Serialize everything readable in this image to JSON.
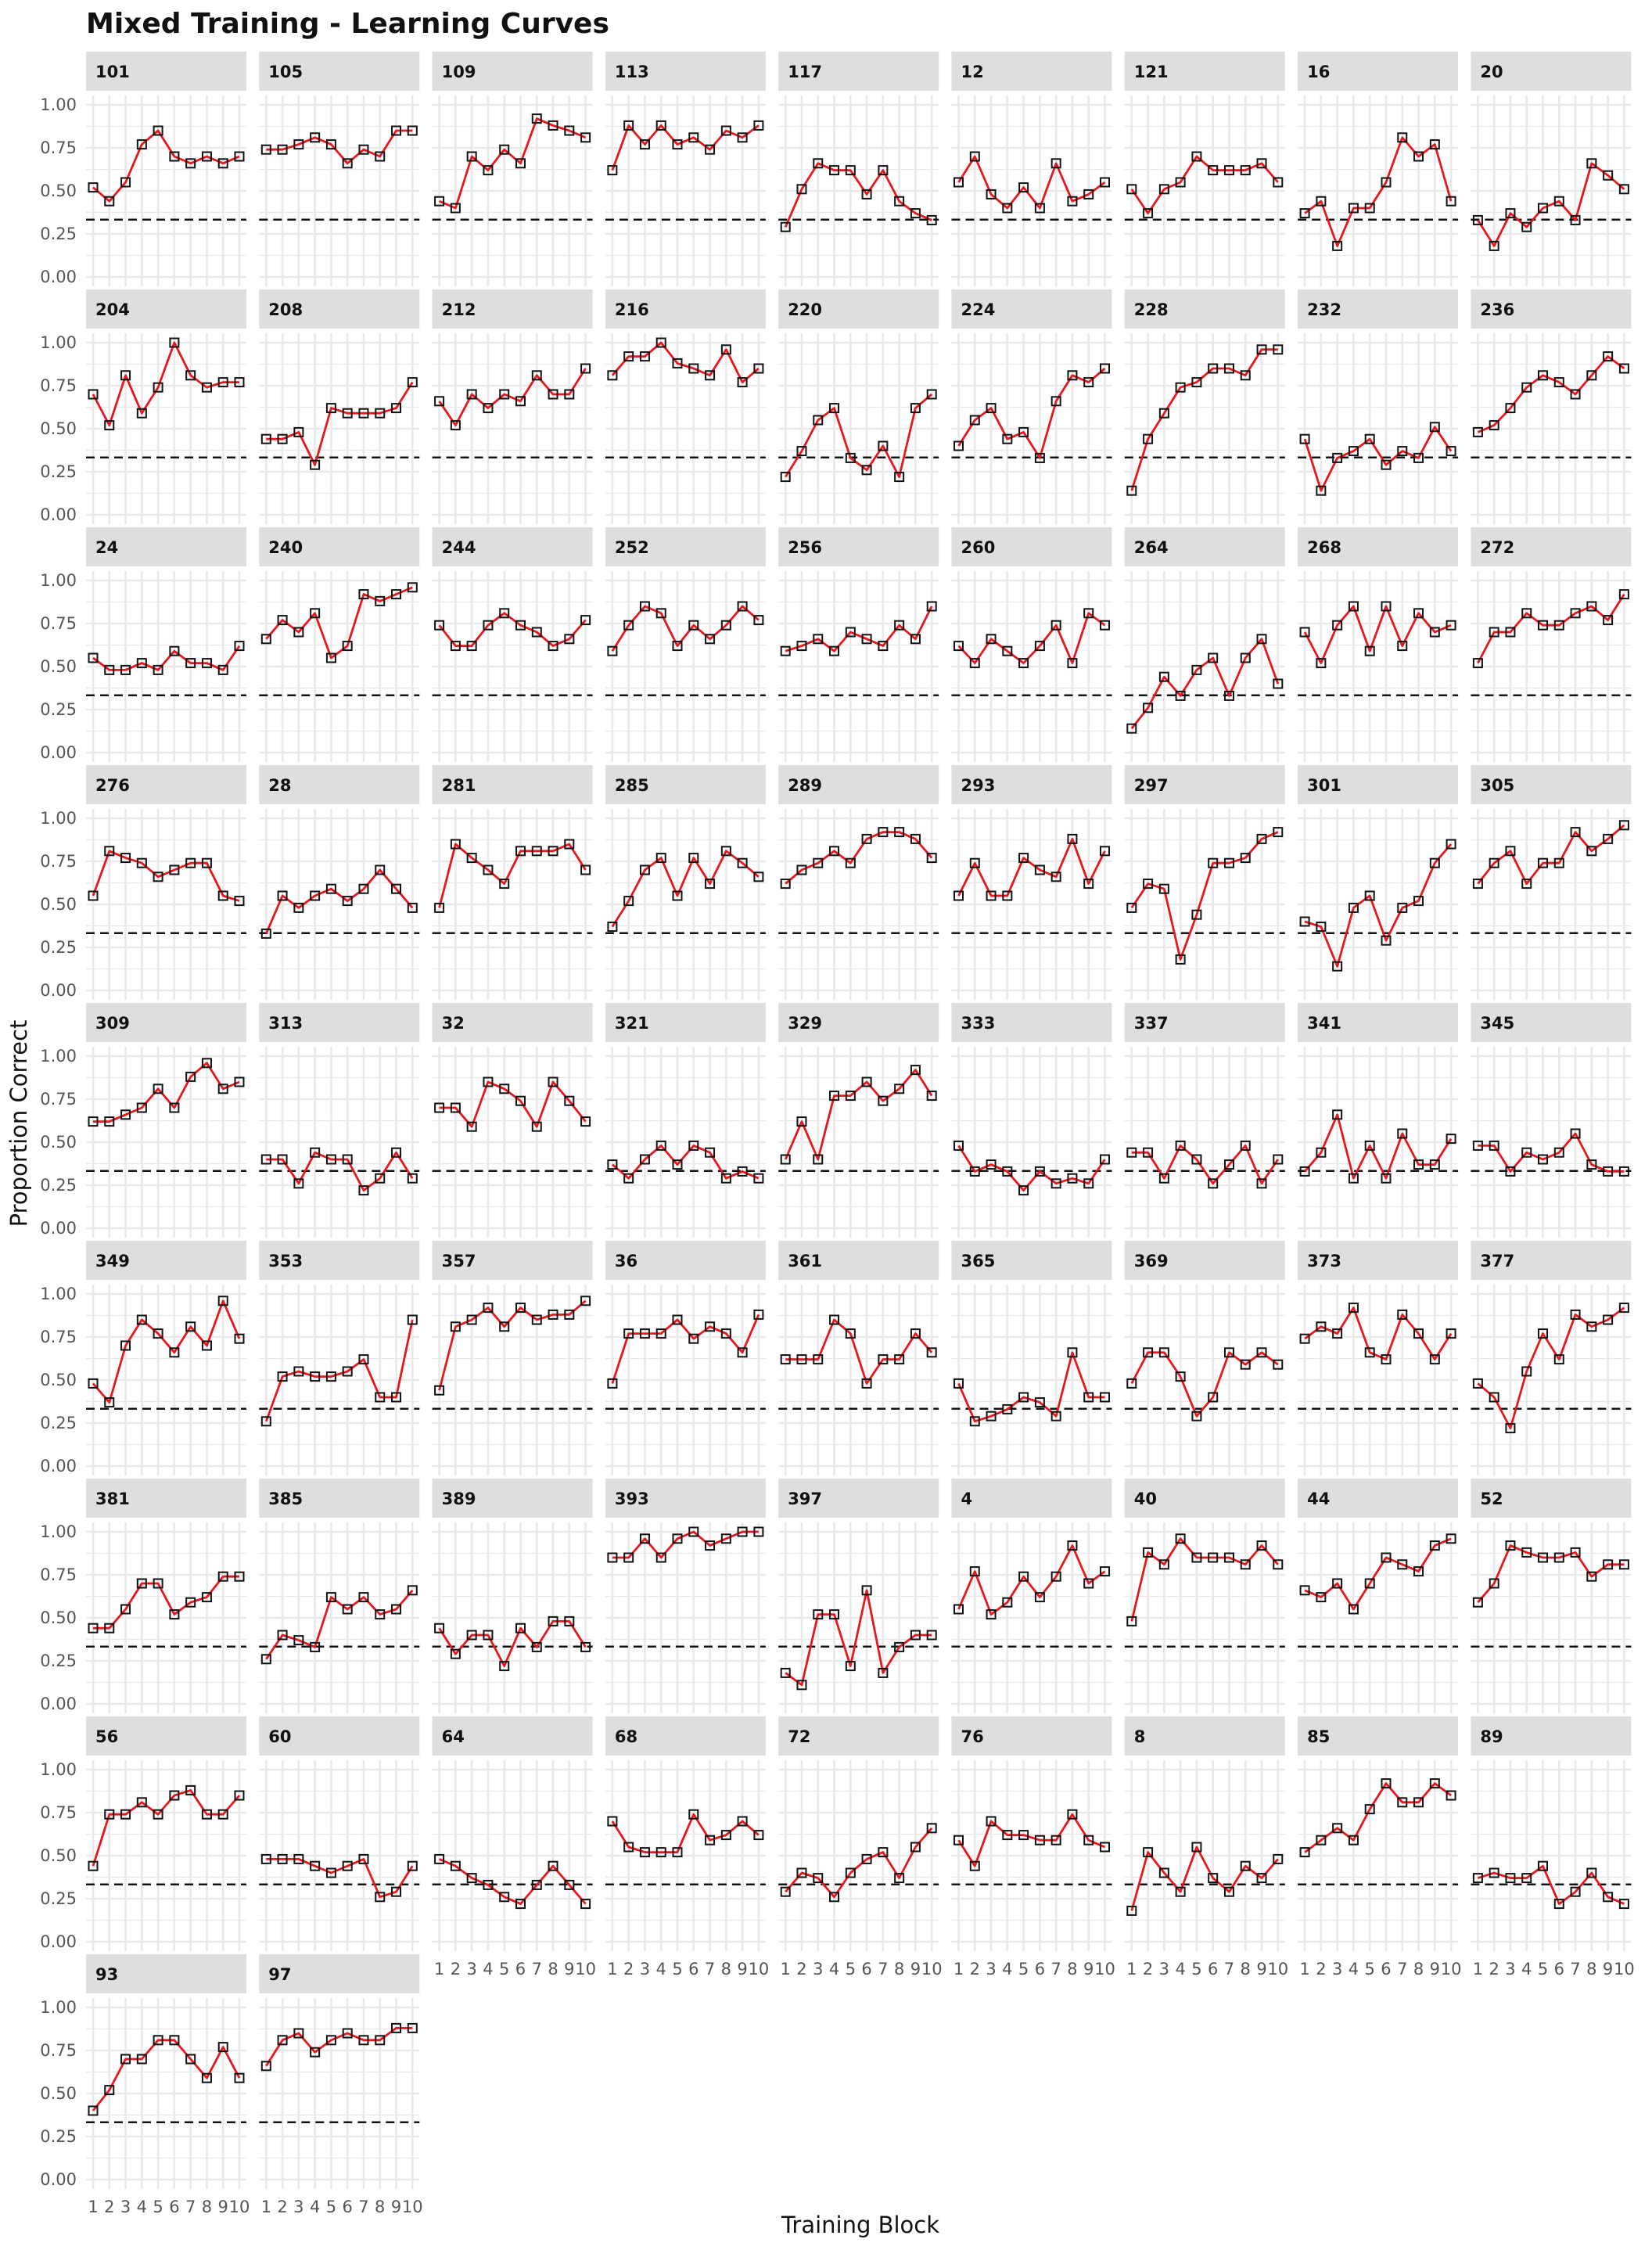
{
  "chart_data": {
    "type": "line",
    "title": "Mixed Training - Learning Curves",
    "xlabel": "Training Block",
    "ylabel": "Proportion Correct",
    "x": [
      1,
      2,
      3,
      4,
      5,
      6,
      7,
      8,
      9,
      10
    ],
    "x_tick_labels": [
      "1",
      "2",
      "3",
      "4",
      "5",
      "6",
      "7",
      "8",
      "9",
      "10"
    ],
    "ylim": [
      0,
      1
    ],
    "y_ticks": [
      0,
      0.25,
      0.5,
      0.75,
      1
    ],
    "y_tick_labels": [
      "0.00",
      "0.25",
      "0.50",
      "0.75",
      "1.00"
    ],
    "chance_line": 0.333,
    "grid": true,
    "colors": {
      "line": "#e8161d",
      "marker_edge": "#111111",
      "strip": "#dedede",
      "grid": "#e9e9e9",
      "reference_line": "#111111",
      "text": "#111111",
      "tick_text": "#555555"
    },
    "panels": [
      {
        "id": "101",
        "values": [
          0.52,
          0.44,
          0.55,
          0.77,
          0.85,
          0.7,
          0.66,
          0.7,
          0.66,
          0.7
        ]
      },
      {
        "id": "105",
        "values": [
          0.74,
          0.74,
          0.77,
          0.81,
          0.77,
          0.66,
          0.74,
          0.7,
          0.85,
          0.85
        ]
      },
      {
        "id": "109",
        "values": [
          0.44,
          0.4,
          0.7,
          0.62,
          0.74,
          0.66,
          0.92,
          0.88,
          0.85,
          0.81
        ]
      },
      {
        "id": "113",
        "values": [
          0.62,
          0.88,
          0.77,
          0.88,
          0.77,
          0.81,
          0.74,
          0.85,
          0.81,
          0.88
        ]
      },
      {
        "id": "117",
        "values": [
          0.29,
          0.51,
          0.66,
          0.62,
          0.62,
          0.48,
          0.62,
          0.44,
          0.37,
          0.33
        ]
      },
      {
        "id": "12",
        "values": [
          0.55,
          0.7,
          0.48,
          0.4,
          0.52,
          0.4,
          0.66,
          0.44,
          0.48,
          0.55
        ]
      },
      {
        "id": "121",
        "values": [
          0.51,
          0.37,
          0.51,
          0.55,
          0.7,
          0.62,
          0.62,
          0.62,
          0.66,
          0.55
        ]
      },
      {
        "id": "16",
        "values": [
          0.37,
          0.44,
          0.18,
          0.4,
          0.4,
          0.55,
          0.81,
          0.7,
          0.77,
          0.44
        ]
      },
      {
        "id": "20",
        "values": [
          0.33,
          0.18,
          0.37,
          0.29,
          0.4,
          0.44,
          0.33,
          0.66,
          0.59,
          0.51
        ]
      },
      {
        "id": "204",
        "values": [
          0.7,
          0.52,
          0.81,
          0.59,
          0.74,
          1.0,
          0.81,
          0.74,
          0.77,
          0.77
        ]
      },
      {
        "id": "208",
        "values": [
          0.44,
          0.44,
          0.48,
          0.29,
          0.62,
          0.59,
          0.59,
          0.59,
          0.62,
          0.77
        ]
      },
      {
        "id": "212",
        "values": [
          0.66,
          0.52,
          0.7,
          0.62,
          0.7,
          0.66,
          0.81,
          0.7,
          0.7,
          0.85
        ]
      },
      {
        "id": "216",
        "values": [
          0.81,
          0.92,
          0.92,
          1.0,
          0.88,
          0.85,
          0.81,
          0.96,
          0.77,
          0.85
        ]
      },
      {
        "id": "220",
        "values": [
          0.22,
          0.37,
          0.55,
          0.62,
          0.33,
          0.26,
          0.4,
          0.22,
          0.62,
          0.7
        ]
      },
      {
        "id": "224",
        "values": [
          0.4,
          0.55,
          0.62,
          0.44,
          0.48,
          0.33,
          0.66,
          0.81,
          0.77,
          0.85
        ]
      },
      {
        "id": "228",
        "values": [
          0.14,
          0.44,
          0.59,
          0.74,
          0.77,
          0.85,
          0.85,
          0.81,
          0.96,
          0.96
        ]
      },
      {
        "id": "232",
        "values": [
          0.44,
          0.14,
          0.33,
          0.37,
          0.44,
          0.29,
          0.37,
          0.33,
          0.51,
          0.37
        ]
      },
      {
        "id": "236",
        "values": [
          0.48,
          0.52,
          0.62,
          0.74,
          0.81,
          0.77,
          0.7,
          0.81,
          0.92,
          0.85
        ]
      },
      {
        "id": "24",
        "values": [
          0.55,
          0.48,
          0.48,
          0.52,
          0.48,
          0.59,
          0.52,
          0.52,
          0.48,
          0.62
        ]
      },
      {
        "id": "240",
        "values": [
          0.66,
          0.77,
          0.7,
          0.81,
          0.55,
          0.62,
          0.92,
          0.88,
          0.92,
          0.96
        ]
      },
      {
        "id": "244",
        "values": [
          0.74,
          0.62,
          0.62,
          0.74,
          0.81,
          0.74,
          0.7,
          0.62,
          0.66,
          0.77
        ]
      },
      {
        "id": "252",
        "values": [
          0.59,
          0.74,
          0.85,
          0.81,
          0.62,
          0.74,
          0.66,
          0.74,
          0.85,
          0.77
        ]
      },
      {
        "id": "256",
        "values": [
          0.59,
          0.62,
          0.66,
          0.59,
          0.7,
          0.66,
          0.62,
          0.74,
          0.66,
          0.85
        ]
      },
      {
        "id": "260",
        "values": [
          0.62,
          0.52,
          0.66,
          0.59,
          0.52,
          0.62,
          0.74,
          0.52,
          0.81,
          0.74
        ]
      },
      {
        "id": "264",
        "values": [
          0.14,
          0.26,
          0.44,
          0.33,
          0.48,
          0.55,
          0.33,
          0.55,
          0.66,
          0.4
        ]
      },
      {
        "id": "268",
        "values": [
          0.7,
          0.52,
          0.74,
          0.85,
          0.59,
          0.85,
          0.62,
          0.81,
          0.7,
          0.74
        ]
      },
      {
        "id": "272",
        "values": [
          0.52,
          0.7,
          0.7,
          0.81,
          0.74,
          0.74,
          0.81,
          0.85,
          0.77,
          0.92
        ]
      },
      {
        "id": "276",
        "values": [
          0.55,
          0.81,
          0.77,
          0.74,
          0.66,
          0.7,
          0.74,
          0.74,
          0.55,
          0.52
        ]
      },
      {
        "id": "28",
        "values": [
          0.33,
          0.55,
          0.48,
          0.55,
          0.59,
          0.52,
          0.59,
          0.7,
          0.59,
          0.48
        ]
      },
      {
        "id": "281",
        "values": [
          0.48,
          0.85,
          0.77,
          0.7,
          0.62,
          0.81,
          0.81,
          0.81,
          0.85,
          0.7
        ]
      },
      {
        "id": "285",
        "values": [
          0.37,
          0.52,
          0.7,
          0.77,
          0.55,
          0.77,
          0.62,
          0.81,
          0.74,
          0.66
        ]
      },
      {
        "id": "289",
        "values": [
          0.62,
          0.7,
          0.74,
          0.81,
          0.74,
          0.88,
          0.92,
          0.92,
          0.88,
          0.77
        ]
      },
      {
        "id": "293",
        "values": [
          0.55,
          0.74,
          0.55,
          0.55,
          0.77,
          0.7,
          0.66,
          0.88,
          0.62,
          0.81
        ]
      },
      {
        "id": "297",
        "values": [
          0.48,
          0.62,
          0.59,
          0.18,
          0.44,
          0.74,
          0.74,
          0.77,
          0.88,
          0.92
        ]
      },
      {
        "id": "301",
        "values": [
          0.4,
          0.37,
          0.14,
          0.48,
          0.55,
          0.29,
          0.48,
          0.52,
          0.74,
          0.85
        ]
      },
      {
        "id": "305",
        "values": [
          0.62,
          0.74,
          0.81,
          0.62,
          0.74,
          0.74,
          0.92,
          0.81,
          0.88,
          0.96
        ]
      },
      {
        "id": "309",
        "values": [
          0.62,
          0.62,
          0.66,
          0.7,
          0.81,
          0.7,
          0.88,
          0.96,
          0.81,
          0.85
        ]
      },
      {
        "id": "313",
        "values": [
          0.4,
          0.4,
          0.26,
          0.44,
          0.4,
          0.4,
          0.22,
          0.29,
          0.44,
          0.29
        ]
      },
      {
        "id": "32",
        "values": [
          0.7,
          0.7,
          0.59,
          0.85,
          0.81,
          0.74,
          0.59,
          0.85,
          0.74,
          0.62
        ]
      },
      {
        "id": "321",
        "values": [
          0.37,
          0.29,
          0.4,
          0.48,
          0.37,
          0.48,
          0.44,
          0.29,
          0.33,
          0.29
        ]
      },
      {
        "id": "329",
        "values": [
          0.4,
          0.62,
          0.4,
          0.77,
          0.77,
          0.85,
          0.74,
          0.81,
          0.92,
          0.77
        ]
      },
      {
        "id": "333",
        "values": [
          0.48,
          0.33,
          0.37,
          0.33,
          0.22,
          0.33,
          0.26,
          0.29,
          0.26,
          0.4
        ]
      },
      {
        "id": "337",
        "values": [
          0.44,
          0.44,
          0.29,
          0.48,
          0.4,
          0.26,
          0.37,
          0.48,
          0.26,
          0.4
        ]
      },
      {
        "id": "341",
        "values": [
          0.33,
          0.44,
          0.66,
          0.29,
          0.48,
          0.29,
          0.55,
          0.37,
          0.37,
          0.52
        ]
      },
      {
        "id": "345",
        "values": [
          0.48,
          0.48,
          0.33,
          0.44,
          0.4,
          0.44,
          0.55,
          0.37,
          0.33,
          0.33
        ]
      },
      {
        "id": "349",
        "values": [
          0.48,
          0.37,
          0.7,
          0.85,
          0.77,
          0.66,
          0.81,
          0.7,
          0.96,
          0.74
        ]
      },
      {
        "id": "353",
        "values": [
          0.26,
          0.52,
          0.55,
          0.52,
          0.52,
          0.55,
          0.62,
          0.4,
          0.4,
          0.85
        ]
      },
      {
        "id": "357",
        "values": [
          0.44,
          0.81,
          0.85,
          0.92,
          0.81,
          0.92,
          0.85,
          0.88,
          0.88,
          0.96
        ]
      },
      {
        "id": "36",
        "values": [
          0.48,
          0.77,
          0.77,
          0.77,
          0.85,
          0.74,
          0.81,
          0.77,
          0.66,
          0.88
        ]
      },
      {
        "id": "361",
        "values": [
          0.62,
          0.62,
          0.62,
          0.85,
          0.77,
          0.48,
          0.62,
          0.62,
          0.77,
          0.66
        ]
      },
      {
        "id": "365",
        "values": [
          0.48,
          0.26,
          0.29,
          0.33,
          0.4,
          0.37,
          0.29,
          0.66,
          0.4,
          0.4
        ]
      },
      {
        "id": "369",
        "values": [
          0.48,
          0.66,
          0.66,
          0.52,
          0.29,
          0.4,
          0.66,
          0.59,
          0.66,
          0.59
        ]
      },
      {
        "id": "373",
        "values": [
          0.74,
          0.81,
          0.77,
          0.92,
          0.66,
          0.62,
          0.88,
          0.77,
          0.62,
          0.77
        ]
      },
      {
        "id": "377",
        "values": [
          0.48,
          0.4,
          0.22,
          0.55,
          0.77,
          0.62,
          0.88,
          0.81,
          0.85,
          0.92
        ]
      },
      {
        "id": "381",
        "values": [
          0.44,
          0.44,
          0.55,
          0.7,
          0.7,
          0.52,
          0.59,
          0.62,
          0.74,
          0.74
        ]
      },
      {
        "id": "385",
        "values": [
          0.26,
          0.4,
          0.37,
          0.33,
          0.62,
          0.55,
          0.62,
          0.52,
          0.55,
          0.66
        ]
      },
      {
        "id": "389",
        "values": [
          0.44,
          0.29,
          0.4,
          0.4,
          0.22,
          0.44,
          0.33,
          0.48,
          0.48,
          0.33
        ]
      },
      {
        "id": "393",
        "values": [
          0.85,
          0.85,
          0.96,
          0.85,
          0.96,
          1.0,
          0.92,
          0.96,
          1.0,
          1.0
        ]
      },
      {
        "id": "397",
        "values": [
          0.18,
          0.11,
          0.52,
          0.52,
          0.22,
          0.66,
          0.18,
          0.33,
          0.4,
          0.4
        ]
      },
      {
        "id": "4",
        "values": [
          0.55,
          0.77,
          0.52,
          0.59,
          0.74,
          0.62,
          0.74,
          0.92,
          0.7,
          0.77
        ]
      },
      {
        "id": "40",
        "values": [
          0.48,
          0.88,
          0.81,
          0.96,
          0.85,
          0.85,
          0.85,
          0.81,
          0.92,
          0.81
        ]
      },
      {
        "id": "44",
        "values": [
          0.66,
          0.62,
          0.7,
          0.55,
          0.7,
          0.85,
          0.81,
          0.77,
          0.92,
          0.96
        ]
      },
      {
        "id": "52",
        "values": [
          0.59,
          0.7,
          0.92,
          0.88,
          0.85,
          0.85,
          0.88,
          0.74,
          0.81,
          0.81
        ]
      },
      {
        "id": "56",
        "values": [
          0.44,
          0.74,
          0.74,
          0.81,
          0.74,
          0.85,
          0.88,
          0.74,
          0.74,
          0.85
        ]
      },
      {
        "id": "60",
        "values": [
          0.48,
          0.48,
          0.48,
          0.44,
          0.4,
          0.44,
          0.48,
          0.26,
          0.29,
          0.44
        ]
      },
      {
        "id": "64",
        "values": [
          0.48,
          0.44,
          0.37,
          0.33,
          0.26,
          0.22,
          0.33,
          0.44,
          0.33,
          0.22
        ]
      },
      {
        "id": "68",
        "values": [
          0.7,
          0.55,
          0.52,
          0.52,
          0.52,
          0.74,
          0.59,
          0.62,
          0.7,
          0.62
        ]
      },
      {
        "id": "72",
        "values": [
          0.29,
          0.4,
          0.37,
          0.26,
          0.4,
          0.48,
          0.52,
          0.37,
          0.55,
          0.66
        ]
      },
      {
        "id": "76",
        "values": [
          0.59,
          0.44,
          0.7,
          0.62,
          0.62,
          0.59,
          0.59,
          0.74,
          0.59,
          0.55
        ]
      },
      {
        "id": "8",
        "values": [
          0.18,
          0.52,
          0.4,
          0.29,
          0.55,
          0.37,
          0.29,
          0.44,
          0.37,
          0.48
        ]
      },
      {
        "id": "85",
        "values": [
          0.52,
          0.59,
          0.66,
          0.59,
          0.77,
          0.92,
          0.81,
          0.81,
          0.92,
          0.85
        ]
      },
      {
        "id": "89",
        "values": [
          0.37,
          0.4,
          0.37,
          0.37,
          0.44,
          0.22,
          0.29,
          0.4,
          0.26,
          0.22
        ]
      },
      {
        "id": "93",
        "values": [
          0.4,
          0.52,
          0.7,
          0.7,
          0.81,
          0.81,
          0.7,
          0.59,
          0.77,
          0.59
        ]
      },
      {
        "id": "97",
        "values": [
          0.66,
          0.81,
          0.85,
          0.74,
          0.81,
          0.85,
          0.81,
          0.81,
          0.88,
          0.88
        ]
      }
    ]
  }
}
